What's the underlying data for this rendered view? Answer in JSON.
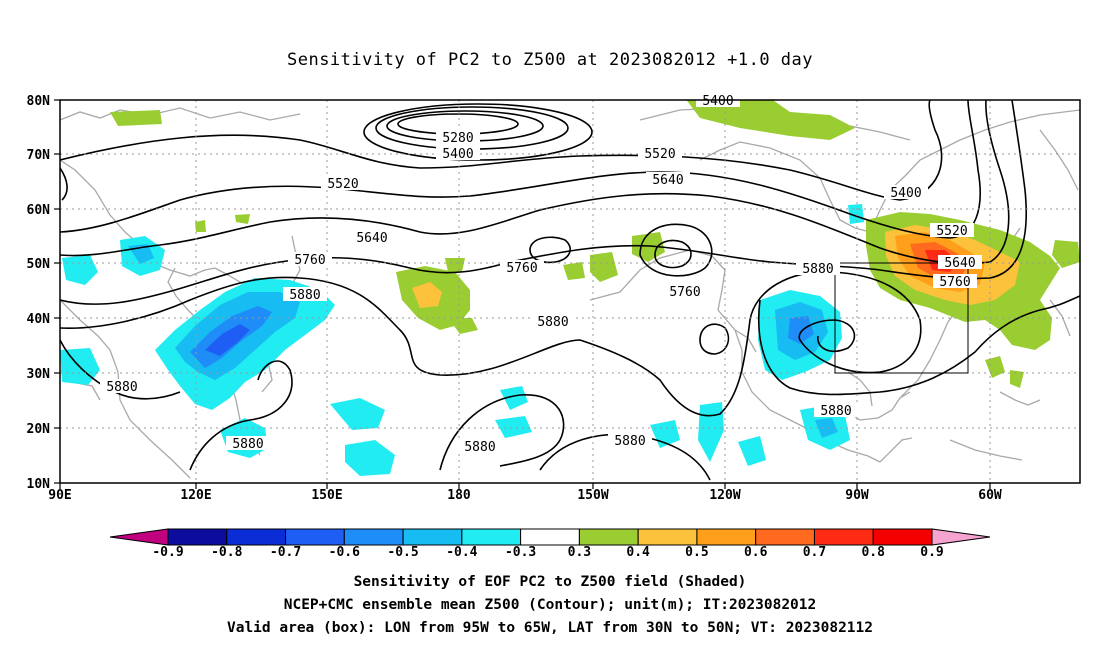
{
  "title": "Sensitivity of PC2 to Z500 at 2023082012 +1.0 day",
  "lat_labels": [
    "80N",
    "70N",
    "60N",
    "50N",
    "40N",
    "30N",
    "20N",
    "10N"
  ],
  "lon_labels": [
    "90E",
    "120E",
    "150E",
    "180",
    "150W",
    "120W",
    "90W",
    "60W"
  ],
  "contour_labels": [
    {
      "text": "5400"
    },
    {
      "text": "5280"
    },
    {
      "text": "5400"
    },
    {
      "text": "5520"
    },
    {
      "text": "5520"
    },
    {
      "text": "5640"
    },
    {
      "text": "5640"
    },
    {
      "text": "5400"
    },
    {
      "text": "5520"
    },
    {
      "text": "5760"
    },
    {
      "text": "5880"
    },
    {
      "text": "5760"
    },
    {
      "text": "5760"
    },
    {
      "text": "5880"
    },
    {
      "text": "5640"
    },
    {
      "text": "5760"
    },
    {
      "text": "5880"
    },
    {
      "text": "5880"
    },
    {
      "text": "5880"
    },
    {
      "text": "5880"
    },
    {
      "text": "5880"
    },
    {
      "text": "5880"
    }
  ],
  "colorbar": {
    "tick_labels": [
      "-0.9",
      "-0.8",
      "-0.7",
      "-0.6",
      "-0.5",
      "-0.4",
      "-0.3",
      "0.3",
      "0.4",
      "0.5",
      "0.6",
      "0.7",
      "0.8",
      "0.9"
    ],
    "colors": [
      "#c0007f",
      "#0c0c9e",
      "#0a2dd6",
      "#1e5ef5",
      "#1f8df7",
      "#17bcf2",
      "#20ecf2",
      "#ffffff",
      "#9acd32",
      "#fcc23c",
      "#ff9f1a",
      "#ff6a1e",
      "#ff2a14",
      "#f50000",
      "#f6a3cf"
    ]
  },
  "captions": [
    "Sensitivity of EOF PC2 to Z500 field (Shaded)",
    "NCEP+CMC ensemble mean Z500 (Contour); unit(m); IT:2023082012",
    "Valid area (box): LON from 95W to 65W, LAT from 30N to 50N; VT: 2023082112"
  ]
}
